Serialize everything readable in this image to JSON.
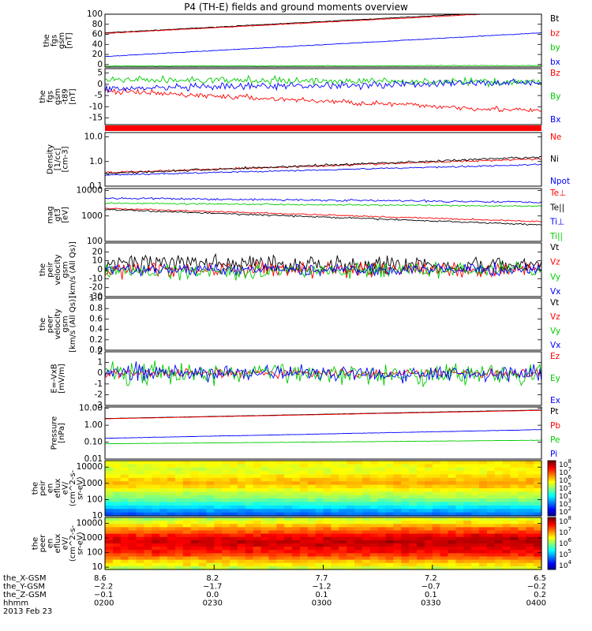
{
  "title": "P4 (TH-E) fields and ground moments overview",
  "colors": {
    "black": "#000000",
    "red": "#ff0000",
    "green": "#00cc00",
    "blue": "#0000ff",
    "orange": "#ff7f00"
  },
  "chart_data": [
    {
      "type": "line",
      "ylabel": [
        "the",
        "fgs",
        "gsm",
        "[nT]"
      ],
      "ylim": [
        -5,
        100
      ],
      "yticks": [
        "100",
        "80",
        "60",
        "40",
        "20",
        "0"
      ],
      "ytick_values": [
        100,
        80,
        60,
        40,
        20,
        0
      ],
      "series": [
        {
          "name": "Bt",
          "color": "black",
          "start": 63,
          "end": 108,
          "noise": 0.3
        },
        {
          "name": "bz",
          "color": "red",
          "start": 62,
          "end": 106,
          "noise": 0.3
        },
        {
          "name": "by",
          "color": "green",
          "start": -3,
          "end": -2,
          "noise": 0.3
        },
        {
          "name": "bx",
          "color": "blue",
          "start": 16,
          "end": 63,
          "noise": 0.3
        }
      ]
    },
    {
      "type": "line",
      "ylabel": [
        "the",
        "fgs",
        "gsm",
        "-t89",
        "[nT]"
      ],
      "ylim": [
        -18,
        7
      ],
      "yticks": [
        "5",
        "0",
        "-5",
        "-10",
        "-15"
      ],
      "ytick_values": [
        5,
        0,
        -5,
        -10,
        -15
      ],
      "series": [
        {
          "name": "Bz",
          "color": "red",
          "start": -3,
          "end": -12,
          "noise": 0.6
        },
        {
          "name": "By",
          "color": "green",
          "start": 2,
          "end": 1,
          "noise": 0.8
        },
        {
          "name": "Bx",
          "color": "blue",
          "start": -2,
          "end": 1,
          "noise": 0.8
        }
      ]
    },
    {
      "type": "bar",
      "ylabel": [],
      "value": "continuous red status bar"
    },
    {
      "type": "line",
      "scale": "log",
      "ylabel": [
        "Density",
        "[1/cc]",
        "[cm-3]"
      ],
      "ylim": [
        0.1,
        15
      ],
      "yticks": [
        "10.0",
        "1.0",
        "0.1"
      ],
      "ytick_values": [
        10,
        1,
        0.1
      ],
      "series": [
        {
          "name": "Ne",
          "color": "red",
          "start": 0.35,
          "end": 1.3,
          "noise": 0.04
        },
        {
          "name": "Ni",
          "color": "black",
          "start": 0.33,
          "end": 1.5,
          "noise": 0.05
        },
        {
          "name": "Npot",
          "color": "blue",
          "start": 0.28,
          "end": 0.75,
          "noise": 0.03
        }
      ]
    },
    {
      "type": "line",
      "scale": "log",
      "ylabel": [
        "mag",
        "gt3",
        "[eV]"
      ],
      "ylim": [
        100,
        12000
      ],
      "yticks": [
        "10000",
        "1000",
        "100"
      ],
      "ytick_values": [
        10000,
        1000,
        100
      ],
      "series": [
        {
          "name": "Te⊥",
          "color": "red",
          "start": 2000,
          "end": 600,
          "noise": 0.03
        },
        {
          "name": "Te||",
          "color": "black",
          "start": 1800,
          "end": 450,
          "noise": 0.03
        },
        {
          "name": "Ti⊥",
          "color": "blue",
          "start": 5000,
          "end": 3500,
          "noise": 0.04
        },
        {
          "name": "Ti||",
          "color": "green",
          "start": 3200,
          "end": 2400,
          "noise": 0.03
        }
      ]
    },
    {
      "type": "line",
      "ylabel": [
        "the",
        "peir",
        "velocity",
        "gsm",
        "[km/s (All Qs)]"
      ],
      "ylim": [
        -30,
        30
      ],
      "yticks": [
        "20",
        "10",
        "0",
        "-10",
        "-20",
        "-30"
      ],
      "ytick_values": [
        20,
        10,
        0,
        -10,
        -20,
        -30
      ],
      "series": [
        {
          "name": "Vt",
          "color": "black",
          "start": 8,
          "end": 5,
          "noise": 5
        },
        {
          "name": "Vz",
          "color": "red",
          "start": 0,
          "end": 0,
          "noise": 4
        },
        {
          "name": "Vy",
          "color": "green",
          "start": -2,
          "end": 0,
          "noise": 4
        },
        {
          "name": "Vx",
          "color": "blue",
          "start": 0,
          "end": 0,
          "noise": 3
        }
      ]
    },
    {
      "type": "line",
      "ylabel": [
        "the",
        "peer",
        "velocity",
        "gsm",
        "[km/s (All Qs)]"
      ],
      "ylim": [
        0,
        1
      ],
      "yticks": [
        "1.0",
        "0.8",
        "0.6",
        "0.4",
        "0.2",
        "0.0"
      ],
      "ytick_values": [
        1.0,
        0.8,
        0.6,
        0.4,
        0.2,
        0.0
      ],
      "series": [
        {
          "name": "Vt",
          "color": "black"
        },
        {
          "name": "Vz",
          "color": "red"
        },
        {
          "name": "Vy",
          "color": "green"
        },
        {
          "name": "Vx",
          "color": "blue"
        }
      ]
    },
    {
      "type": "line",
      "ylabel": [
        "E=-VxB",
        "[mV/m]"
      ],
      "ylim": [
        -3,
        2
      ],
      "yticks": [
        "2",
        "1",
        "0",
        "-1",
        "-2",
        "-3"
      ],
      "ytick_values": [
        2,
        1,
        0,
        -1,
        -2,
        -3
      ],
      "series": [
        {
          "name": "Ez",
          "color": "red",
          "start": 0,
          "end": 0,
          "noise": 0.2
        },
        {
          "name": "Ey",
          "color": "green",
          "start": 0,
          "end": 0,
          "noise": 0.5
        },
        {
          "name": "Ex",
          "color": "blue",
          "start": 0,
          "end": 0,
          "noise": 0.4
        }
      ]
    },
    {
      "type": "line",
      "scale": "log",
      "ylabel": [
        "Pressure",
        "[nPa]"
      ],
      "ylim": [
        0.01,
        12
      ],
      "yticks": [
        "10.00",
        "1.00",
        "0.10",
        "0.01"
      ],
      "ytick_values": [
        10,
        1,
        0.1,
        0.01
      ],
      "series": [
        {
          "name": "Pt",
          "color": "black",
          "start": 2.5,
          "end": 8,
          "noise": 0.005
        },
        {
          "name": "Pb",
          "color": "red",
          "start": 2.4,
          "end": 7.6,
          "noise": 0.005
        },
        {
          "name": "Pe",
          "color": "green",
          "start": 0.08,
          "end": 0.13,
          "noise": 0.01
        },
        {
          "name": "Pi",
          "color": "blue",
          "start": 0.17,
          "end": 0.55,
          "noise": 0.01
        }
      ]
    },
    {
      "type": "heatmap",
      "ylabel": [
        "the",
        "peir",
        "en",
        "eflux",
        "eV/",
        "(cm^2-s-",
        "sr-eV)"
      ],
      "ylim": [
        10,
        25000
      ],
      "yticks": [
        "10000",
        "1000",
        "100",
        "10"
      ],
      "ytick_values": [
        10000,
        1000,
        100,
        10
      ],
      "colorbar": [
        "10^8",
        "10^7",
        "10^6",
        "10^5",
        "10^4",
        "10^3",
        "10^2"
      ],
      "colorbar_range": [
        2,
        8
      ],
      "rows": [
        3.3,
        3.6,
        4.0,
        4.4,
        4.8,
        5.1,
        5.3,
        5.6,
        5.9,
        6.1,
        6.0,
        5.8,
        5.6,
        5.5,
        5.6,
        5.7
      ]
    },
    {
      "type": "heatmap",
      "ylabel": [
        "the",
        "peer",
        "en",
        "eflux",
        "eV/",
        "(cm^2-s-",
        "sr-eV)"
      ],
      "ylim": [
        7,
        25000
      ],
      "yticks": [
        "10000",
        "1000",
        "100",
        "10"
      ],
      "ytick_values": [
        10000,
        1000,
        100,
        10
      ],
      "colorbar": [
        "10^8",
        "10^7",
        "10^6",
        "10^5",
        "10^4"
      ],
      "colorbar_range": [
        3.5,
        8
      ],
      "rows": [
        6.0,
        6.3,
        6.5,
        6.8,
        7.1,
        7.3,
        7.4,
        7.5,
        7.6,
        7.5,
        7.3,
        7.0,
        6.8,
        6.5,
        6.2,
        6.0
      ]
    }
  ],
  "x_axis": {
    "row_labels": [
      "the_X-GSM",
      "the_Y-GSM",
      "the_Z-GSM",
      "hhmm",
      "2013 Feb 23"
    ],
    "ticks": [
      {
        "x_gsm": "8.6",
        "y_gsm": "-2.2",
        "z_gsm": "-0.1",
        "hhmm": "0200"
      },
      {
        "x_gsm": "8.2",
        "y_gsm": "-1.7",
        "z_gsm": "0.0",
        "hhmm": "0230"
      },
      {
        "x_gsm": "7.7",
        "y_gsm": "-1.2",
        "z_gsm": "0.1",
        "hhmm": "0300"
      },
      {
        "x_gsm": "7.2",
        "y_gsm": "-0.7",
        "z_gsm": "0.1",
        "hhmm": "0330"
      },
      {
        "x_gsm": "6.5",
        "y_gsm": "-0.2",
        "z_gsm": "0.2",
        "hhmm": "0400"
      }
    ]
  }
}
